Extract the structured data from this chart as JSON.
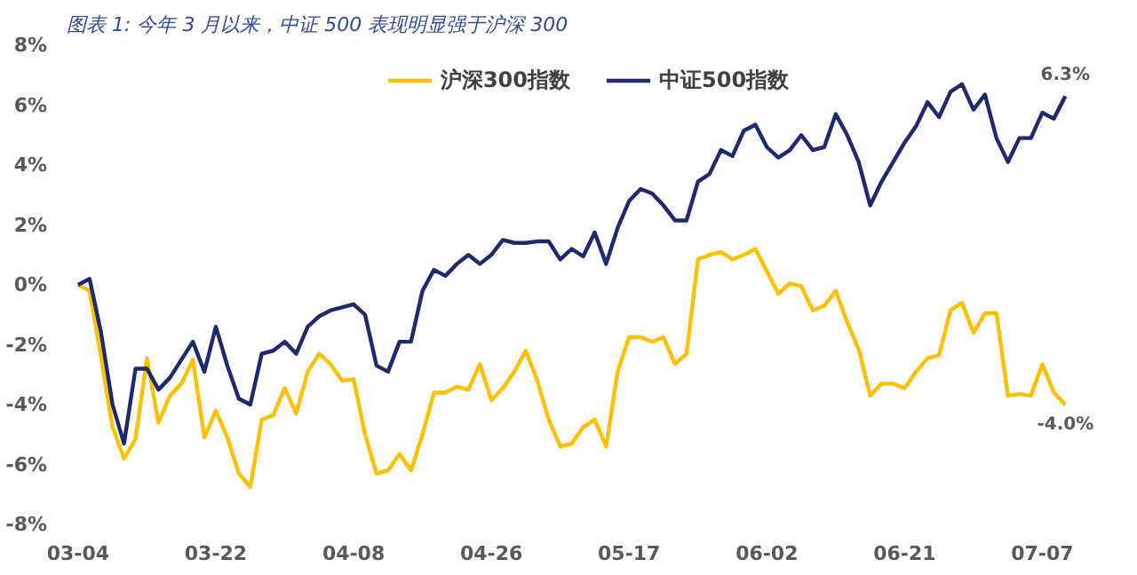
{
  "chart_data": {
    "type": "line",
    "title": "图表 1:  今年 3 月以来，中证 500 表现明显强于沪深 300",
    "categories": [
      "03-04",
      null,
      null,
      null,
      null,
      null,
      null,
      null,
      null,
      null,
      null,
      null,
      "03-22",
      null,
      null,
      null,
      null,
      null,
      null,
      null,
      null,
      null,
      null,
      null,
      "04-08",
      null,
      null,
      null,
      null,
      null,
      null,
      null,
      null,
      null,
      null,
      null,
      "04-26",
      null,
      null,
      null,
      null,
      null,
      null,
      null,
      null,
      null,
      null,
      null,
      "05-17",
      null,
      null,
      null,
      null,
      null,
      null,
      null,
      null,
      null,
      null,
      null,
      "06-02",
      null,
      null,
      null,
      null,
      null,
      null,
      null,
      null,
      null,
      null,
      null,
      "06-21",
      null,
      null,
      null,
      null,
      null,
      null,
      null,
      null,
      null,
      null,
      null,
      "07-07",
      null,
      null
    ],
    "series": [
      {
        "name": "沪深300指数",
        "color": "#ffc000",
        "values": [
          0.0,
          -0.2,
          -2.4,
          -4.75,
          -5.8,
          -5.15,
          -2.45,
          -4.6,
          -3.7,
          -3.3,
          -2.5,
          -5.1,
          -4.2,
          -5.1,
          -6.3,
          -6.75,
          -4.5,
          -4.35,
          -3.45,
          -4.3,
          -2.9,
          -2.3,
          -2.65,
          -3.2,
          -3.15,
          -5.0,
          -6.3,
          -6.2,
          -5.65,
          -6.2,
          -5.0,
          -3.6,
          -3.6,
          -3.4,
          -3.5,
          -2.65,
          -3.85,
          -3.45,
          -2.9,
          -2.2,
          -3.2,
          -4.5,
          -5.4,
          -5.3,
          -4.75,
          -4.5,
          -5.4,
          -2.9,
          -1.75,
          -1.75,
          -1.9,
          -1.75,
          -2.65,
          -2.3,
          0.85,
          1.0,
          1.1,
          0.85,
          1.0,
          1.2,
          0.45,
          -0.3,
          0.05,
          -0.05,
          -0.85,
          -0.7,
          -0.2,
          -1.25,
          -2.15,
          -3.7,
          -3.3,
          -3.3,
          -3.45,
          -2.9,
          -2.45,
          -2.35,
          -0.85,
          -0.6,
          -1.6,
          -0.95,
          -0.95,
          -3.7,
          -3.65,
          -3.7,
          -2.65,
          -3.6,
          -4.0
        ],
        "value_labels": [
          null,
          null,
          null,
          null,
          null,
          null,
          null,
          null,
          null,
          null,
          null,
          null,
          null,
          null,
          null,
          null,
          null,
          null,
          null,
          null,
          null,
          null,
          null,
          null,
          null,
          null,
          null,
          null,
          null,
          null,
          null,
          null,
          null,
          null,
          null,
          null,
          null,
          null,
          null,
          null,
          null,
          null,
          null,
          null,
          null,
          null,
          null,
          null,
          null,
          null,
          null,
          null,
          null,
          null,
          null,
          null,
          null,
          null,
          null,
          null,
          null,
          null,
          null,
          null,
          null,
          null,
          null,
          null,
          null,
          null,
          null,
          null,
          null,
          null,
          null,
          null,
          null,
          null,
          null,
          null,
          null,
          null,
          null,
          null,
          null,
          null,
          "-4.0%"
        ]
      },
      {
        "name": "中证500指数",
        "color": "#1f2a6e",
        "values": [
          0.0,
          0.2,
          -1.6,
          -4.0,
          -5.3,
          -2.8,
          -2.8,
          -3.5,
          -3.1,
          -2.5,
          -1.9,
          -2.9,
          -1.4,
          -2.7,
          -3.8,
          -4.0,
          -2.3,
          -2.2,
          -1.9,
          -2.3,
          -1.4,
          -1.05,
          -0.85,
          -0.75,
          -0.65,
          -1.0,
          -2.7,
          -2.9,
          -1.9,
          -1.9,
          -0.2,
          0.5,
          0.3,
          0.7,
          1.0,
          0.7,
          1.0,
          1.5,
          1.4,
          1.4,
          1.45,
          1.45,
          0.85,
          1.2,
          0.95,
          1.75,
          0.7,
          1.9,
          2.8,
          3.2,
          3.05,
          2.65,
          2.15,
          2.15,
          3.45,
          3.7,
          4.5,
          4.3,
          5.15,
          5.35,
          4.6,
          4.25,
          4.5,
          5.0,
          4.5,
          4.6,
          5.7,
          5.0,
          4.1,
          2.65,
          3.45,
          4.1,
          4.75,
          5.3,
          6.1,
          5.6,
          6.45,
          6.7,
          5.85,
          6.35,
          4.9,
          4.1,
          4.9,
          4.9,
          5.75,
          5.55,
          6.3
        ],
        "value_labels": [
          null,
          null,
          null,
          null,
          null,
          null,
          null,
          null,
          null,
          null,
          null,
          null,
          null,
          null,
          null,
          null,
          null,
          null,
          null,
          null,
          null,
          null,
          null,
          null,
          null,
          null,
          null,
          null,
          null,
          null,
          null,
          null,
          null,
          null,
          null,
          null,
          null,
          null,
          null,
          null,
          null,
          null,
          null,
          null,
          null,
          null,
          null,
          null,
          null,
          null,
          null,
          null,
          null,
          null,
          null,
          null,
          null,
          null,
          null,
          null,
          null,
          null,
          null,
          null,
          null,
          null,
          null,
          null,
          null,
          null,
          null,
          null,
          null,
          null,
          null,
          null,
          null,
          null,
          null,
          null,
          null,
          null,
          null,
          null,
          null,
          null,
          "6.3%"
        ]
      }
    ],
    "ylim": [
      -8,
      8
    ],
    "yticks": [
      {
        "value": -8,
        "label": "-8%"
      },
      {
        "value": -6,
        "label": "-6%"
      },
      {
        "value": -4,
        "label": "-4%"
      },
      {
        "value": -2,
        "label": "-2%"
      },
      {
        "value": 0,
        "label": "0%"
      },
      {
        "value": 2,
        "label": "2%"
      },
      {
        "value": 4,
        "label": "4%"
      },
      {
        "value": 6,
        "label": "6%"
      },
      {
        "value": 8,
        "label": "8%"
      }
    ],
    "grid": false,
    "legend": "top",
    "marker": "none",
    "line_style": "solid"
  }
}
